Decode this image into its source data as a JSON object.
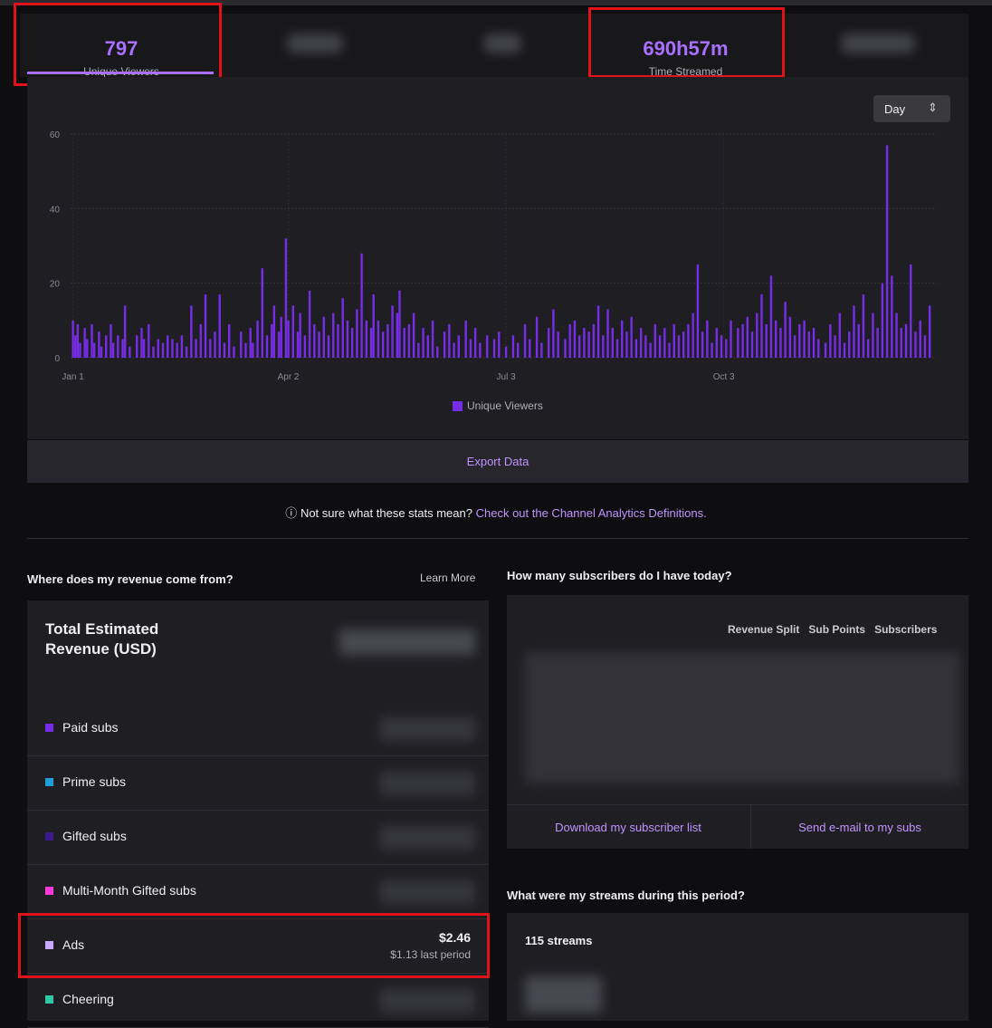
{
  "tiles": [
    {
      "value": "797",
      "label": "Unique Viewers"
    },
    {
      "value": "690h57m",
      "label": "Time Streamed"
    }
  ],
  "period": "Day",
  "chart_data": {
    "type": "bar",
    "x": [
      0,
      1,
      2,
      3,
      5,
      6,
      8,
      9,
      11,
      12,
      14,
      16,
      17,
      19,
      21,
      22,
      24,
      27,
      29,
      30,
      32,
      34,
      36,
      38,
      40,
      42,
      44,
      46,
      48,
      50,
      52,
      54,
      56,
      58,
      60,
      62,
      64,
      66,
      68,
      71,
      73,
      75,
      76,
      78,
      80,
      82,
      84,
      85,
      87,
      88,
      90,
      91,
      93,
      95,
      96,
      98,
      100,
      102,
      104,
      106,
      108,
      110,
      112,
      114,
      116,
      118,
      120,
      122,
      124,
      126,
      127,
      129,
      131,
      133,
      135,
      137,
      138,
      140,
      142,
      144,
      146,
      148,
      150,
      152,
      154,
      157,
      159,
      161,
      163,
      166,
      168,
      170,
      172,
      175,
      178,
      180,
      183,
      186,
      188,
      191,
      193,
      196,
      198,
      201,
      203,
      205,
      208,
      210,
      212,
      214,
      216,
      218,
      220,
      222,
      224,
      226,
      228,
      230,
      232,
      234,
      236,
      238,
      240,
      242,
      244,
      246,
      248,
      250,
      252,
      254,
      256,
      258,
      260,
      262,
      264,
      266,
      268,
      270,
      272,
      274,
      276,
      278,
      281,
      283,
      285,
      287,
      289,
      291,
      293,
      295,
      297,
      299,
      301,
      303,
      305,
      307,
      309,
      311,
      313,
      315,
      318,
      320,
      322,
      324,
      326,
      328,
      330,
      332,
      334,
      336,
      338,
      340,
      342,
      344,
      346,
      348,
      350,
      352,
      354,
      356,
      358,
      360,
      362
    ],
    "series": [
      {
        "name": "Unique Viewers",
        "color": "#772ce8",
        "values": [
          10,
          6,
          9,
          4,
          8,
          5,
          9,
          4,
          7,
          3,
          6,
          9,
          4,
          6,
          5,
          14,
          3,
          6,
          8,
          5,
          9,
          3,
          5,
          4,
          6,
          5,
          4,
          6,
          3,
          14,
          5,
          9,
          17,
          5,
          7,
          17,
          4,
          9,
          3,
          7,
          4,
          8,
          4,
          10,
          24,
          6,
          9,
          14,
          7,
          11,
          32,
          10,
          14,
          7,
          12,
          6,
          18,
          9,
          7,
          11,
          6,
          12,
          9,
          16,
          10,
          8,
          13,
          28,
          10,
          8,
          17,
          10,
          7,
          9,
          14,
          12,
          18,
          8,
          9,
          12,
          4,
          8,
          6,
          10,
          3,
          7,
          9,
          4,
          6,
          10,
          5,
          8,
          4,
          6,
          5,
          7,
          3,
          6,
          4,
          9,
          5,
          11,
          4,
          8,
          13,
          7,
          5,
          9,
          10,
          6,
          8,
          7,
          9,
          14,
          6,
          13,
          8,
          5,
          10,
          7,
          11,
          5,
          8,
          6,
          4,
          9,
          6,
          8,
          4,
          9,
          6,
          7,
          9,
          12,
          25,
          7,
          10,
          4,
          8,
          6,
          5,
          10,
          8,
          9,
          11,
          7,
          12,
          17,
          9,
          22,
          10,
          8,
          15,
          11,
          6,
          9,
          10,
          7,
          8,
          5,
          4,
          9,
          6,
          12,
          4,
          7,
          14,
          9,
          17,
          5,
          12,
          8,
          20,
          57,
          22,
          12,
          8,
          9,
          25,
          7,
          10,
          6,
          14
        ]
      }
    ],
    "xlim": [
      -1,
      365
    ],
    "xticks": [
      {
        "value": 0,
        "label": "Jan 1"
      },
      {
        "value": 91,
        "label": "Apr 2"
      },
      {
        "value": 183,
        "label": "Jul 3"
      },
      {
        "value": 275,
        "label": "Oct 3"
      }
    ],
    "ylim": [
      0,
      60
    ],
    "yticks": [
      0,
      20,
      40,
      60
    ],
    "grid": true
  },
  "export": "Export Data",
  "help": {
    "text": "Not sure what these stats mean?",
    "link": "Check out the Channel Analytics Definitions."
  },
  "revenue": {
    "heading": "Where does my revenue come from?",
    "learn_more": "Learn More",
    "total_label": "Total Estimated Revenue (USD)",
    "sources": [
      {
        "name": "Paid subs",
        "color": "#772ce8"
      },
      {
        "name": "Prime subs",
        "color": "#1f9fd9"
      },
      {
        "name": "Gifted subs",
        "color": "#3d1a8c"
      },
      {
        "name": "Multi-Month Gifted subs",
        "color": "#ff38db"
      },
      {
        "name": "Ads",
        "color": "#c9a9ff",
        "amount": "$2.46",
        "previous": "$1.13 last period"
      },
      {
        "name": "Cheering",
        "color": "#2fc8a4"
      }
    ]
  },
  "subscribers": {
    "heading": "How many subscribers do I have today?",
    "columns": [
      "Revenue Split",
      "Sub Points",
      "Subscribers"
    ],
    "buttons": [
      "Download my subscriber list",
      "Send e-mail to my subs"
    ]
  },
  "streams": {
    "heading": "What were my streams during this period?",
    "count": "115 streams"
  }
}
